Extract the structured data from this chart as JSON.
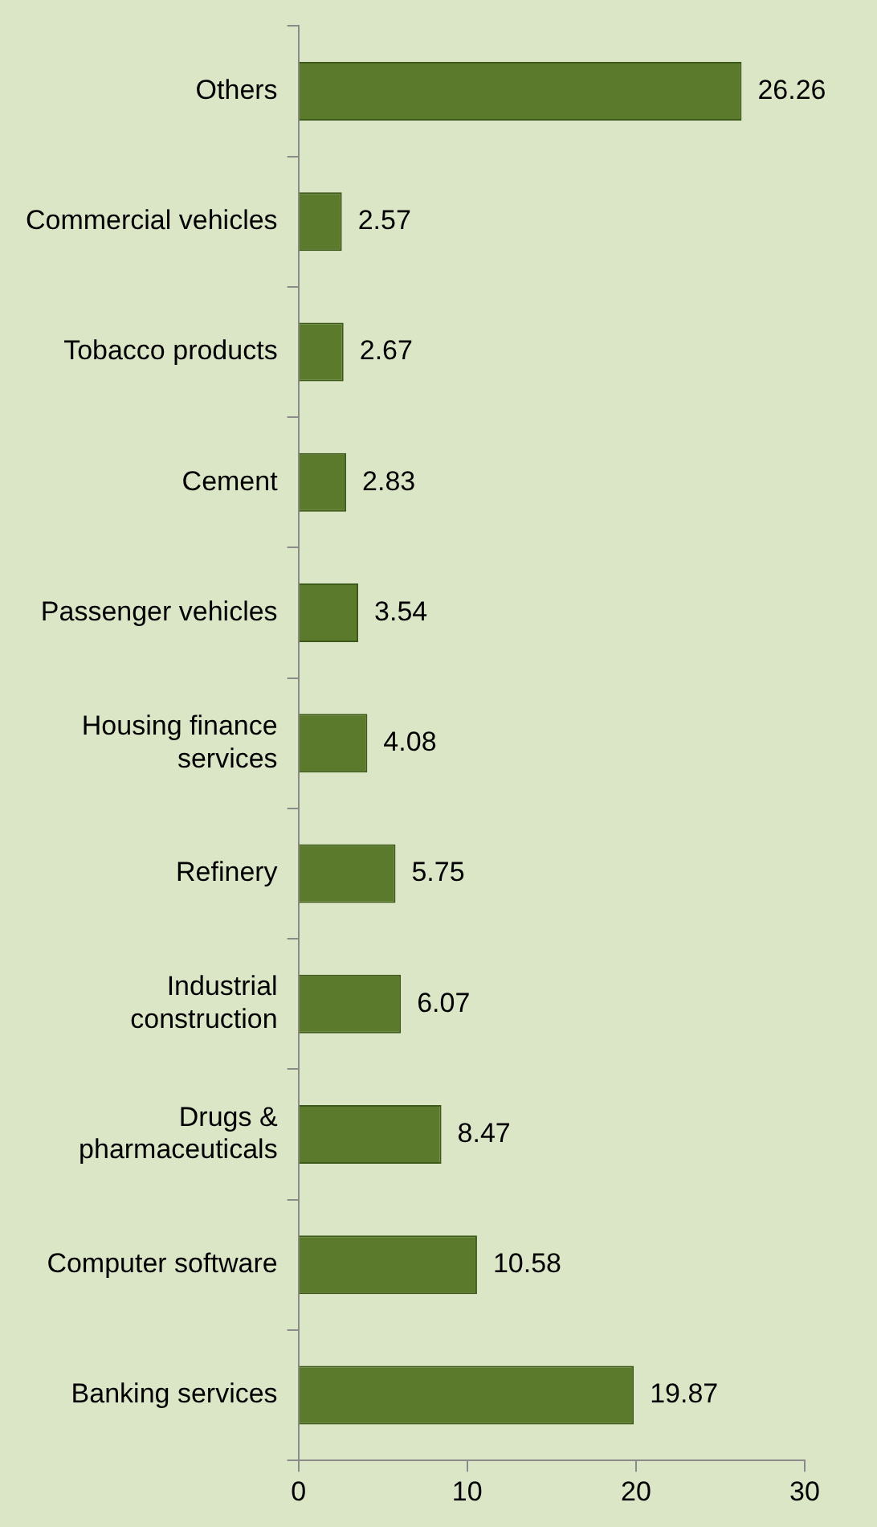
{
  "chart_data": {
    "type": "bar",
    "orientation": "horizontal",
    "categories": [
      "Others",
      "Commercial vehicles",
      "Tobacco products",
      "Cement",
      "Passenger vehicles",
      "Housing finance services",
      "Refinery",
      "Industrial construction",
      "Drugs & pharmaceuticals",
      "Computer software",
      "Banking services"
    ],
    "values": [
      26.26,
      2.57,
      2.67,
      2.83,
      3.54,
      4.08,
      5.75,
      6.07,
      8.47,
      10.58,
      19.87
    ],
    "color": "#5b7a2b",
    "xlim": [
      0,
      30
    ],
    "xticks": [
      0,
      10,
      20,
      30
    ],
    "grid": false,
    "legend": false,
    "data_labels": true
  }
}
